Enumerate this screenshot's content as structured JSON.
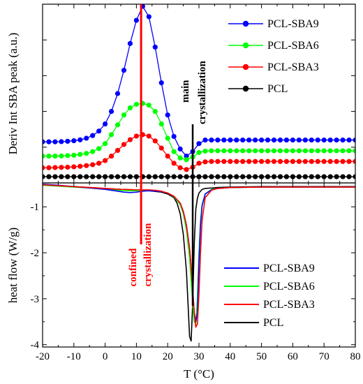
{
  "chart_data": [
    {
      "type": "line",
      "panel": "top",
      "ylabel": "Deriv Int SBA peak (a.u.)",
      "y_tick_labels_shown": false,
      "xlim": [
        -20,
        80
      ],
      "ylim": [
        0,
        10
      ],
      "grid": false,
      "legend_position": "top-right",
      "legend_order": [
        "PCL-SBA9",
        "PCL-SBA6",
        "PCL-SBA3",
        "PCL"
      ],
      "series": [
        {
          "name": "PCL-SBA9",
          "color": "#0000ff",
          "marker": "circle",
          "x": [
            -20,
            -18,
            -16,
            -14,
            -12,
            -10,
            -8,
            -6,
            -4,
            -2,
            0,
            2,
            4,
            6,
            8,
            10,
            12,
            14,
            16,
            18,
            20,
            22,
            24,
            26,
            28,
            30,
            32,
            34,
            36,
            38,
            40,
            42,
            44,
            46,
            48,
            50,
            52,
            54,
            56,
            58,
            60,
            62,
            64,
            66,
            68,
            70,
            72,
            74,
            76,
            78,
            80
          ],
          "values": [
            2.3,
            2.3,
            2.3,
            2.31,
            2.33,
            2.36,
            2.41,
            2.5,
            2.65,
            2.9,
            3.3,
            4.0,
            5.0,
            6.3,
            7.8,
            9.1,
            9.88,
            9.3,
            7.6,
            5.6,
            3.8,
            2.6,
            1.9,
            1.5,
            1.75,
            2.2,
            2.4,
            2.4,
            2.4,
            2.4,
            2.4,
            2.4,
            2.4,
            2.4,
            2.4,
            2.4,
            2.4,
            2.4,
            2.4,
            2.4,
            2.4,
            2.4,
            2.4,
            2.4,
            2.4,
            2.4,
            2.4,
            2.4,
            2.4,
            2.4,
            2.4
          ]
        },
        {
          "name": "PCL-SBA6",
          "color": "#00ff00",
          "marker": "circle",
          "x": [
            -20,
            -18,
            -16,
            -14,
            -12,
            -10,
            -8,
            -6,
            -4,
            -2,
            0,
            2,
            4,
            6,
            8,
            10,
            12,
            14,
            16,
            18,
            20,
            22,
            24,
            26,
            28,
            30,
            32,
            34,
            36,
            38,
            40,
            42,
            44,
            46,
            48,
            50,
            52,
            54,
            56,
            58,
            60,
            62,
            64,
            66,
            68,
            70,
            72,
            74,
            76,
            78,
            80
          ],
          "values": [
            1.5,
            1.5,
            1.5,
            1.51,
            1.53,
            1.55,
            1.6,
            1.65,
            1.75,
            1.92,
            2.2,
            2.7,
            3.25,
            3.8,
            4.2,
            4.4,
            4.45,
            4.35,
            4.0,
            3.3,
            2.5,
            1.75,
            1.4,
            1.3,
            1.45,
            1.7,
            1.78,
            1.8,
            1.8,
            1.8,
            1.8,
            1.8,
            1.8,
            1.8,
            1.8,
            1.8,
            1.8,
            1.8,
            1.8,
            1.8,
            1.8,
            1.8,
            1.8,
            1.8,
            1.8,
            1.8,
            1.8,
            1.8,
            1.8,
            1.8,
            1.8
          ]
        },
        {
          "name": "PCL-SBA3",
          "color": "#ff0000",
          "marker": "circle",
          "x": [
            -20,
            -18,
            -16,
            -14,
            -12,
            -10,
            -8,
            -6,
            -4,
            -2,
            0,
            2,
            4,
            6,
            8,
            10,
            12,
            14,
            16,
            18,
            20,
            22,
            24,
            26,
            28,
            30,
            32,
            34,
            36,
            38,
            40,
            42,
            44,
            46,
            48,
            50,
            52,
            54,
            56,
            58,
            60,
            62,
            64,
            66,
            68,
            70,
            72,
            74,
            76,
            78,
            80
          ],
          "values": [
            0.85,
            0.85,
            0.86,
            0.87,
            0.88,
            0.9,
            0.93,
            0.97,
            1.02,
            1.1,
            1.25,
            1.5,
            1.82,
            2.15,
            2.42,
            2.62,
            2.7,
            2.62,
            2.35,
            1.95,
            1.5,
            1.1,
            0.85,
            0.75,
            0.88,
            1.1,
            1.18,
            1.2,
            1.2,
            1.2,
            1.2,
            1.2,
            1.2,
            1.2,
            1.2,
            1.2,
            1.2,
            1.2,
            1.2,
            1.2,
            1.2,
            1.2,
            1.2,
            1.2,
            1.2,
            1.2,
            1.2,
            1.2,
            1.2,
            1.2,
            1.2
          ]
        },
        {
          "name": "PCL",
          "color": "#000000",
          "marker": "circle",
          "x": [
            -20,
            -18,
            -16,
            -14,
            -12,
            -10,
            -8,
            -6,
            -4,
            -2,
            0,
            2,
            4,
            6,
            8,
            10,
            12,
            14,
            16,
            18,
            20,
            22,
            24,
            26,
            28,
            30,
            32,
            34,
            36,
            38,
            40,
            42,
            44,
            46,
            48,
            50,
            52,
            54,
            56,
            58,
            60,
            62,
            64,
            66,
            68,
            70,
            72,
            74,
            76,
            78,
            80
          ],
          "values": [
            0.35,
            0.35,
            0.35,
            0.35,
            0.35,
            0.35,
            0.35,
            0.35,
            0.35,
            0.35,
            0.35,
            0.35,
            0.35,
            0.35,
            0.35,
            0.35,
            0.35,
            0.35,
            0.35,
            0.35,
            0.35,
            0.35,
            0.35,
            0.35,
            0.35,
            0.35,
            0.35,
            0.35,
            0.35,
            0.35,
            0.35,
            0.35,
            0.35,
            0.35,
            0.35,
            0.35,
            0.35,
            0.35,
            0.35,
            0.35,
            0.35,
            0.35,
            0.35,
            0.35,
            0.35,
            0.35,
            0.35,
            0.35,
            0.35,
            0.35,
            0.35
          ]
        }
      ]
    },
    {
      "type": "line",
      "panel": "bottom",
      "xlabel": "T (°C)",
      "ylabel": "heat flow (W/g)",
      "xlim": [
        -20,
        80
      ],
      "ylim": [
        -4.05,
        -0.48
      ],
      "x_ticks": [
        -20,
        -10,
        0,
        10,
        20,
        30,
        40,
        50,
        60,
        70,
        80
      ],
      "y_ticks": [
        -1,
        -2,
        -3,
        -4
      ],
      "grid": false,
      "legend_position": "bottom-right",
      "legend_order": [
        "PCL-SBA9",
        "PCL-SBA6",
        "PCL-SBA3",
        "PCL"
      ],
      "series": [
        {
          "name": "PCL",
          "color": "#000000",
          "x": [
            -20,
            -15,
            -10,
            -5,
            0,
            5,
            10,
            14,
            18,
            20,
            22,
            23,
            24,
            25,
            26,
            26.5,
            27,
            27.5,
            28,
            28.5,
            29,
            29.5,
            30,
            31,
            32,
            34,
            36,
            40,
            50,
            60,
            70,
            80
          ],
          "values": [
            -0.52,
            -0.54,
            -0.56,
            -0.58,
            -0.6,
            -0.62,
            -0.63,
            -0.65,
            -0.68,
            -0.72,
            -0.8,
            -0.92,
            -1.15,
            -1.6,
            -2.4,
            -3.1,
            -3.82,
            -3.92,
            -3.1,
            -1.8,
            -1.05,
            -0.82,
            -0.7,
            -0.62,
            -0.6,
            -0.59,
            -0.58,
            -0.57,
            -0.56,
            -0.56,
            -0.56,
            -0.56
          ]
        },
        {
          "name": "PCL-SBA6",
          "color": "#00ff00",
          "x": [
            -20,
            -15,
            -10,
            -5,
            0,
            5,
            8,
            10,
            12,
            14,
            16,
            18,
            20,
            22,
            24,
            25,
            26,
            27,
            27.5,
            28,
            28.5,
            29,
            29.5,
            30,
            30.5,
            31,
            32,
            34,
            36,
            40,
            50,
            60,
            70,
            80
          ],
          "values": [
            -0.53,
            -0.55,
            -0.57,
            -0.59,
            -0.62,
            -0.64,
            -0.65,
            -0.65,
            -0.64,
            -0.64,
            -0.65,
            -0.66,
            -0.7,
            -0.78,
            -0.95,
            -1.15,
            -1.5,
            -2.1,
            -2.6,
            -3.1,
            -3.5,
            -3.55,
            -3.0,
            -2.0,
            -1.3,
            -0.95,
            -0.72,
            -0.62,
            -0.6,
            -0.58,
            -0.57,
            -0.57,
            -0.57,
            -0.57
          ]
        },
        {
          "name": "PCL-SBA9",
          "color": "#0000ff",
          "x": [
            -20,
            -15,
            -10,
            -5,
            0,
            4,
            6,
            8,
            10,
            12,
            14,
            16,
            18,
            20,
            22,
            24,
            25,
            26,
            27,
            27.5,
            28,
            28.5,
            29,
            29.5,
            30,
            30.5,
            31,
            32,
            34,
            36,
            40,
            50,
            60,
            70,
            80
          ],
          "values": [
            -0.51,
            -0.53,
            -0.56,
            -0.59,
            -0.62,
            -0.66,
            -0.68,
            -0.69,
            -0.68,
            -0.66,
            -0.65,
            -0.66,
            -0.67,
            -0.7,
            -0.77,
            -0.92,
            -1.1,
            -1.4,
            -1.9,
            -2.3,
            -2.8,
            -3.3,
            -3.5,
            -3.3,
            -2.2,
            -1.4,
            -0.98,
            -0.72,
            -0.63,
            -0.6,
            -0.58,
            -0.57,
            -0.57,
            -0.57,
            -0.57
          ]
        },
        {
          "name": "PCL-SBA3",
          "color": "#ff0000",
          "x": [
            -20,
            -15,
            -10,
            -5,
            0,
            5,
            10,
            12,
            14,
            16,
            18,
            20,
            22,
            24,
            25,
            26,
            27,
            27.5,
            28,
            28.5,
            29,
            29.5,
            30,
            30.5,
            31,
            32,
            34,
            36,
            40,
            50,
            60,
            70,
            80
          ],
          "values": [
            -0.52,
            -0.54,
            -0.56,
            -0.58,
            -0.6,
            -0.62,
            -0.63,
            -0.63,
            -0.63,
            -0.64,
            -0.66,
            -0.7,
            -0.77,
            -0.92,
            -1.1,
            -1.4,
            -1.9,
            -2.3,
            -2.8,
            -3.3,
            -3.62,
            -3.55,
            -2.9,
            -2.0,
            -1.3,
            -0.8,
            -0.64,
            -0.6,
            -0.58,
            -0.57,
            -0.57,
            -0.57,
            -0.57
          ]
        }
      ]
    }
  ],
  "markers": {
    "confined_x": 11.5,
    "confined_color": "#ff0000",
    "main_x": 28,
    "main_color": "#000000"
  },
  "annotations": {
    "main_line1": "main",
    "main_line2": "crystallization",
    "confined_line1": "confined",
    "confined_line2": "crystallization"
  },
  "legend_top": [
    {
      "label": "PCL-SBA9",
      "color": "#0000ff"
    },
    {
      "label": "PCL-SBA6",
      "color": "#00ff00"
    },
    {
      "label": "PCL-SBA3",
      "color": "#ff0000"
    },
    {
      "label": "PCL",
      "color": "#000000"
    }
  ],
  "legend_bottom": [
    {
      "label": "PCL-SBA9",
      "color": "#0000ff"
    },
    {
      "label": "PCL-SBA6",
      "color": "#00ff00"
    },
    {
      "label": "PCL-SBA3",
      "color": "#ff0000"
    },
    {
      "label": "PCL",
      "color": "#000000"
    }
  ]
}
